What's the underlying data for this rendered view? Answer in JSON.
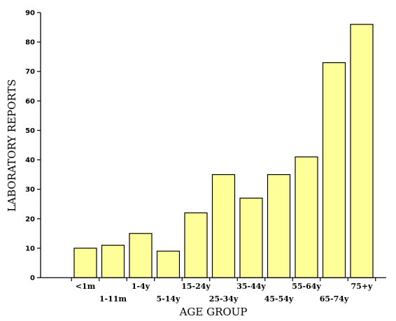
{
  "chart_data": {
    "type": "bar",
    "title": "",
    "xlabel": "AGE GROUP",
    "ylabel": "LABORATORY REPORTS",
    "categories": [
      "<1m",
      "1-11m",
      "1-4y",
      "5-14y",
      "15-24y",
      "25-34y",
      "35-44y",
      "45-54y",
      "55-64y",
      "65-74y",
      "75+y"
    ],
    "values": [
      10,
      11,
      15,
      9,
      22,
      35,
      27,
      35,
      41,
      73,
      86
    ],
    "ylim": [
      0,
      90
    ],
    "yticks": [
      0,
      10,
      20,
      30,
      40,
      50,
      60,
      70,
      80,
      90
    ],
    "grid": false,
    "legend": "none",
    "bar_color": "#ffff99",
    "bar_edge_color": "#000000"
  }
}
